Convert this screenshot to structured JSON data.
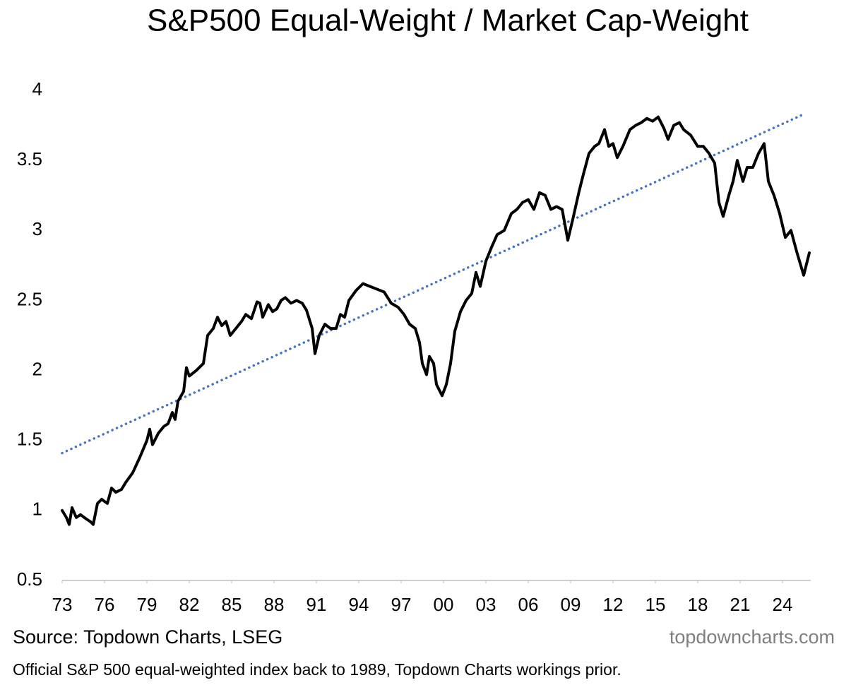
{
  "chart_data": {
    "type": "line",
    "title": "S&P500 Equal-Weight / Market Cap-Weight",
    "source": "Source: Topdown Charts, LSEG",
    "watermark": "topdowncharts.com",
    "note": "Official S&P 500 equal-weighted index back to 1989, Topdown Charts workings prior.",
    "xlim": [
      1973,
      2026
    ],
    "xticks": [
      {
        "value": 1973,
        "label": "73"
      },
      {
        "value": 1976,
        "label": "76"
      },
      {
        "value": 1979,
        "label": "79"
      },
      {
        "value": 1982,
        "label": "82"
      },
      {
        "value": 1985,
        "label": "85"
      },
      {
        "value": 1988,
        "label": "88"
      },
      {
        "value": 1991,
        "label": "91"
      },
      {
        "value": 1994,
        "label": "94"
      },
      {
        "value": 1997,
        "label": "97"
      },
      {
        "value": 2000,
        "label": "00"
      },
      {
        "value": 2003,
        "label": "03"
      },
      {
        "value": 2006,
        "label": "06"
      },
      {
        "value": 2009,
        "label": "09"
      },
      {
        "value": 2012,
        "label": "12"
      },
      {
        "value": 2015,
        "label": "15"
      },
      {
        "value": 2018,
        "label": "18"
      },
      {
        "value": 2021,
        "label": "21"
      },
      {
        "value": 2024,
        "label": "24"
      }
    ],
    "ylim": [
      0.5,
      4
    ],
    "yticks": [
      0.5,
      1,
      1.5,
      2,
      2.5,
      3,
      3.5,
      4
    ],
    "grid": false,
    "series": [
      {
        "color": "#000000",
        "style": "solid",
        "x": [
          1973.0,
          1973.3,
          1973.5,
          1973.7,
          1974.0,
          1974.3,
          1974.7,
          1975.0,
          1975.2,
          1975.5,
          1975.8,
          1976.2,
          1976.5,
          1976.8,
          1977.2,
          1977.5,
          1978.0,
          1978.5,
          1979.0,
          1979.2,
          1979.4,
          1979.8,
          1980.2,
          1980.5,
          1980.8,
          1981.0,
          1981.2,
          1981.6,
          1981.8,
          1982.0,
          1982.5,
          1983.0,
          1983.3,
          1983.7,
          1984.0,
          1984.3,
          1984.6,
          1984.9,
          1985.3,
          1985.7,
          1986.0,
          1986.4,
          1986.8,
          1987.0,
          1987.2,
          1987.6,
          1987.9,
          1988.2,
          1988.5,
          1988.8,
          1989.2,
          1989.6,
          1990.0,
          1990.3,
          1990.7,
          1990.9,
          1991.2,
          1991.6,
          1992.0,
          1992.4,
          1992.7,
          1993.0,
          1993.3,
          1993.8,
          1994.3,
          1994.8,
          1995.3,
          1995.8,
          1996.3,
          1996.8,
          1997.2,
          1997.6,
          1998.0,
          1998.3,
          1998.5,
          1998.8,
          1999.0,
          1999.3,
          1999.5,
          1999.9,
          2000.2,
          2000.5,
          2000.8,
          2001.2,
          2001.6,
          2002.0,
          2002.3,
          2002.6,
          2003.0,
          2003.4,
          2003.8,
          2004.3,
          2004.8,
          2005.2,
          2005.6,
          2006.0,
          2006.4,
          2006.8,
          2007.2,
          2007.6,
          2008.0,
          2008.4,
          2008.8,
          2009.2,
          2009.6,
          2009.9,
          2010.3,
          2010.7,
          2011.0,
          2011.4,
          2011.7,
          2012.0,
          2012.3,
          2012.7,
          2013.2,
          2013.6,
          2014.0,
          2014.4,
          2014.8,
          2015.2,
          2015.6,
          2015.9,
          2016.3,
          2016.7,
          2017.0,
          2017.5,
          2018.0,
          2018.4,
          2018.8,
          2019.2,
          2019.5,
          2019.8,
          2020.2,
          2020.5,
          2020.8,
          2021.2,
          2021.5,
          2021.9,
          2022.3,
          2022.7,
          2023.0,
          2023.4,
          2023.8,
          2024.2,
          2024.6,
          2025.0,
          2025.5,
          2025.9
        ],
        "values": [
          1.0,
          0.95,
          0.9,
          1.02,
          0.95,
          0.97,
          0.94,
          0.92,
          0.9,
          1.05,
          1.08,
          1.05,
          1.16,
          1.13,
          1.15,
          1.2,
          1.27,
          1.38,
          1.5,
          1.58,
          1.47,
          1.55,
          1.6,
          1.62,
          1.7,
          1.65,
          1.78,
          1.85,
          2.02,
          1.96,
          2.0,
          2.05,
          2.25,
          2.3,
          2.38,
          2.32,
          2.35,
          2.25,
          2.3,
          2.35,
          2.4,
          2.37,
          2.49,
          2.48,
          2.38,
          2.47,
          2.42,
          2.44,
          2.5,
          2.52,
          2.48,
          2.5,
          2.48,
          2.43,
          2.3,
          2.12,
          2.25,
          2.33,
          2.3,
          2.3,
          2.4,
          2.38,
          2.5,
          2.57,
          2.62,
          2.6,
          2.58,
          2.56,
          2.48,
          2.45,
          2.4,
          2.33,
          2.3,
          2.2,
          2.05,
          1.97,
          2.1,
          2.05,
          1.9,
          1.82,
          1.9,
          2.05,
          2.28,
          2.42,
          2.5,
          2.55,
          2.7,
          2.6,
          2.78,
          2.88,
          2.97,
          3.0,
          3.12,
          3.15,
          3.2,
          3.22,
          3.15,
          3.27,
          3.25,
          3.15,
          3.17,
          3.15,
          2.93,
          3.1,
          3.28,
          3.4,
          3.55,
          3.6,
          3.62,
          3.72,
          3.6,
          3.62,
          3.52,
          3.6,
          3.72,
          3.75,
          3.77,
          3.8,
          3.78,
          3.81,
          3.73,
          3.65,
          3.75,
          3.77,
          3.72,
          3.68,
          3.6,
          3.6,
          3.55,
          3.48,
          3.2,
          3.1,
          3.25,
          3.35,
          3.5,
          3.35,
          3.45,
          3.45,
          3.55,
          3.62,
          3.35,
          3.25,
          3.12,
          2.95,
          3.0,
          2.85,
          2.68,
          2.84
        ]
      },
      {
        "color": "#4472c4",
        "style": "dotted",
        "x": [
          1973.0,
          2025.5
        ],
        "values": [
          1.41,
          3.83
        ]
      }
    ]
  }
}
